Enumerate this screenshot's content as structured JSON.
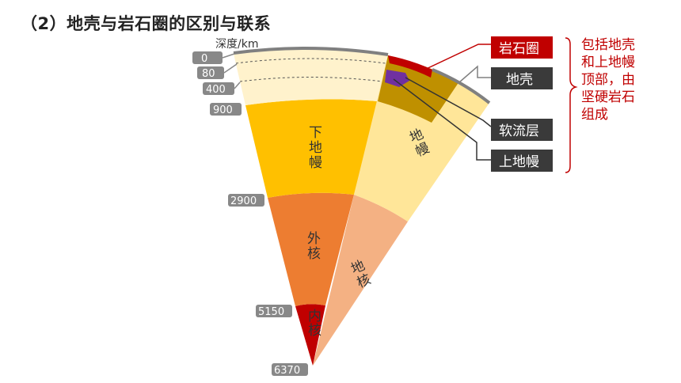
{
  "title": "（2）地壳与岩石圈的区别与联系",
  "depth_axis_label": "深度/km",
  "depth_ticks": [
    "0",
    "80",
    "400",
    "900",
    "2900",
    "5150",
    "6370"
  ],
  "left_layers": {
    "lower_mantle": "下地幔",
    "outer_core": "外核",
    "inner_core": "内核"
  },
  "right_layers": {
    "mantle": "地幔",
    "core": "地核"
  },
  "callouts": {
    "lithosphere": "岩石圈",
    "crust": "地壳",
    "asthenosphere": "软流层",
    "upper_mantle": "上地幔"
  },
  "note_lines": [
    "包括地壳",
    "和上地幔",
    "顶部，由",
    "坚硬岩石",
    "组成"
  ],
  "colors": {
    "lithosphere": "#c00000",
    "crust_patch": "#7030a0",
    "lower_mantle": "#ffc000",
    "outer_core": "#ed7d31",
    "inner_core": "#c00000",
    "upper_mantle": "#fff2cc",
    "mantle_right": "#ffe699",
    "upper_right_dark": "#bf9000",
    "core_right": "#f4b183",
    "callout_box": "#3a3a3a",
    "bracket": "#c00000"
  }
}
